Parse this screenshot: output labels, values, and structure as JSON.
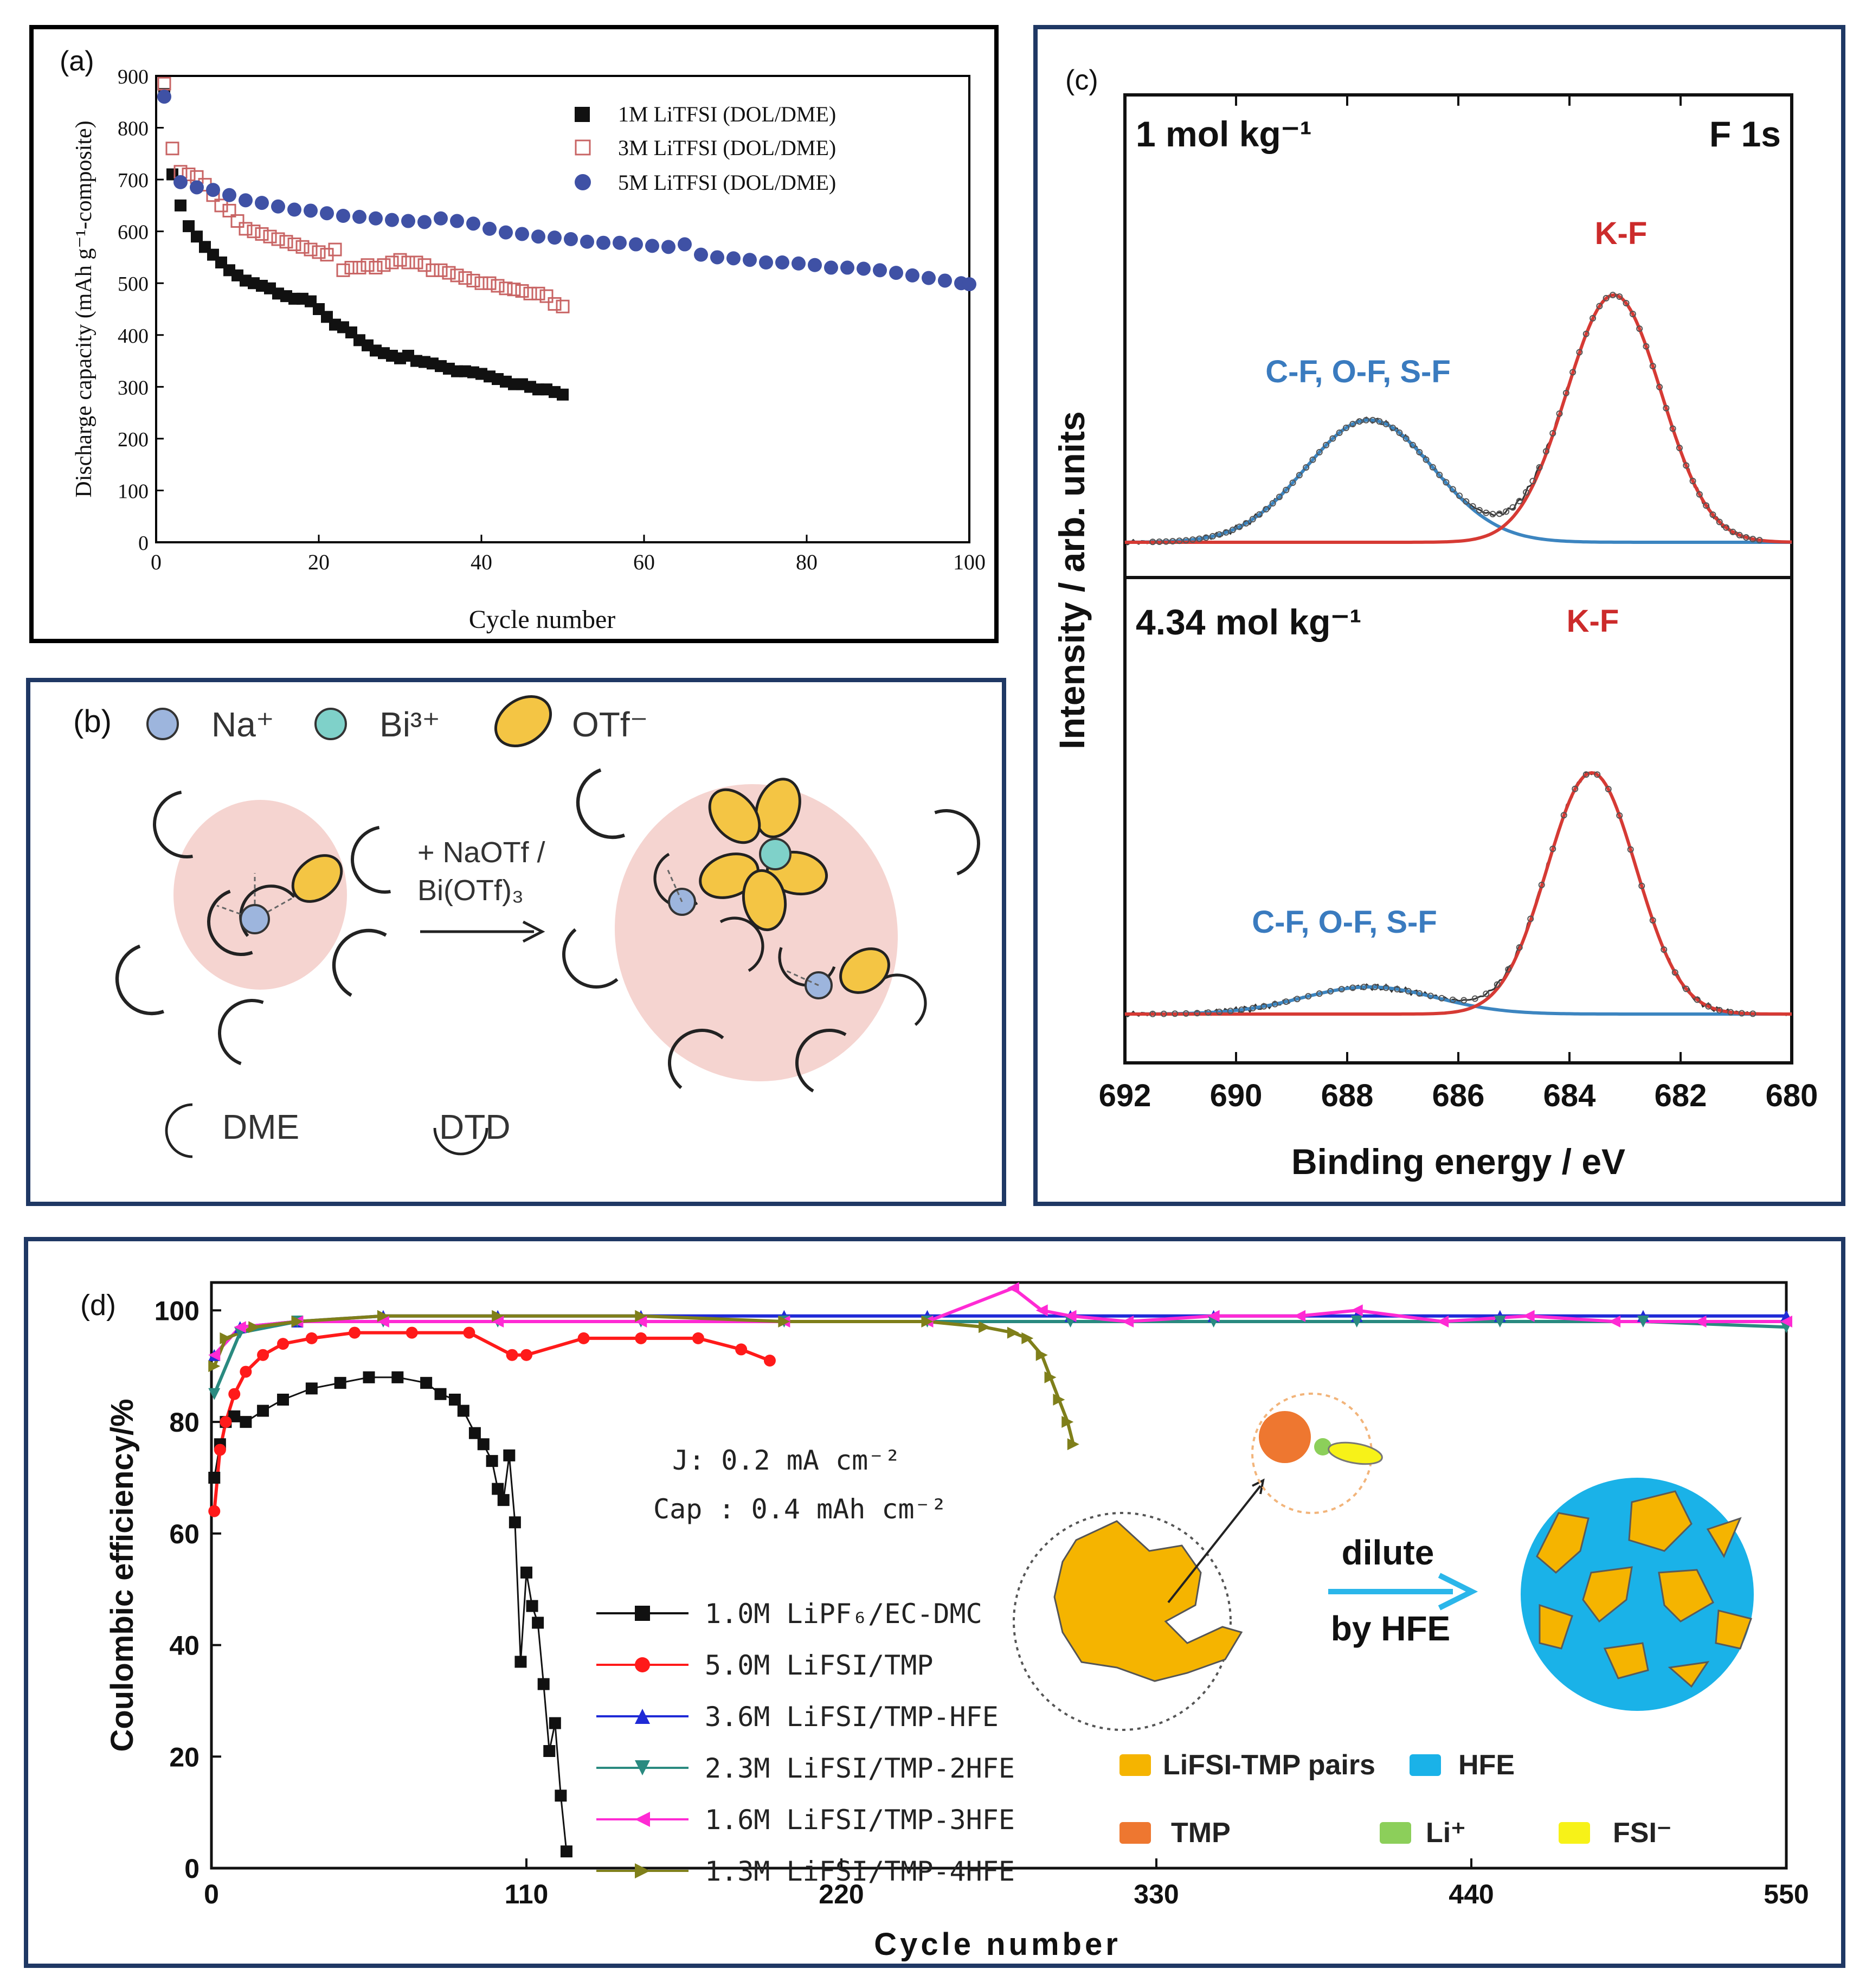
{
  "colors": {
    "frame": "#1f3864",
    "black": "#111111",
    "open_red": "#c86464",
    "blue_dot": "#3f51a5",
    "xps_blue": "#3c85c0",
    "xps_red": "#d63a34",
    "label_blue": "#3a7bbf",
    "label_red": "#cc2b2b",
    "na": "#9db5dd",
    "bi": "#7fd1c9",
    "otf": "#f4c544",
    "dme": "#a283c0",
    "dtd": "#f7c9a8",
    "halo": "#f5d4d0",
    "d_black": "#111111",
    "d_red": "#ff1a1a",
    "d_blue": "#1f2ad6",
    "d_teal": "#2a8a80",
    "d_magenta": "#ff2ad4",
    "d_olive": "#7f7f1a",
    "lifsi_tmp": "#f5b400",
    "hfe": "#1ab2e8",
    "tmp": "#ee7730",
    "li": "#8ccf5a",
    "fsi": "#f7f218",
    "arrow_blue": "#2bb6ea"
  },
  "panel_a": {
    "tag": "(a)",
    "chart_data": {
      "type": "scatter",
      "title": "",
      "xlabel": "Cycle number",
      "ylabel": "Discharge capacity (mAh g⁻¹-composite)",
      "xlim": [
        0,
        100
      ],
      "ylim": [
        0,
        900
      ],
      "xticks": [
        "0",
        "20",
        "40",
        "60",
        "80",
        "100"
      ],
      "yticks": [
        "0",
        "100",
        "200",
        "300",
        "400",
        "500",
        "600",
        "700",
        "800",
        "900"
      ],
      "legend_position": "top-right",
      "series": [
        {
          "name": "1M LiTFSI (DOL/DME)",
          "marker": "filled-square",
          "x": [
            1,
            2,
            3,
            4,
            5,
            6,
            7,
            8,
            9,
            10,
            11,
            12,
            13,
            14,
            15,
            16,
            17,
            18,
            19,
            20,
            21,
            22,
            23,
            24,
            25,
            26,
            27,
            28,
            29,
            30,
            31,
            32,
            33,
            34,
            35,
            36,
            37,
            38,
            39,
            40,
            41,
            42,
            43,
            44,
            45,
            46,
            47,
            48,
            49,
            50
          ],
          "y": [
            865,
            710,
            650,
            610,
            590,
            570,
            555,
            540,
            525,
            515,
            505,
            500,
            495,
            490,
            480,
            475,
            470,
            470,
            465,
            450,
            435,
            420,
            415,
            405,
            390,
            380,
            370,
            365,
            360,
            355,
            360,
            350,
            348,
            345,
            340,
            335,
            330,
            330,
            328,
            325,
            320,
            315,
            310,
            305,
            305,
            300,
            295,
            295,
            290,
            285
          ]
        },
        {
          "name": "3M LiTFSI (DOL/DME)",
          "marker": "open-square",
          "x": [
            1,
            2,
            3,
            4,
            5,
            6,
            7,
            8,
            9,
            10,
            11,
            12,
            13,
            14,
            15,
            16,
            17,
            18,
            19,
            20,
            21,
            22,
            23,
            24,
            25,
            26,
            27,
            28,
            29,
            30,
            31,
            32,
            33,
            34,
            35,
            36,
            37,
            38,
            39,
            40,
            41,
            42,
            43,
            44,
            45,
            46,
            47,
            48,
            49,
            50
          ],
          "y": [
            885,
            760,
            715,
            710,
            705,
            690,
            670,
            650,
            640,
            620,
            605,
            600,
            595,
            590,
            585,
            580,
            575,
            570,
            565,
            560,
            555,
            565,
            525,
            530,
            530,
            535,
            530,
            535,
            540,
            545,
            540,
            540,
            535,
            525,
            525,
            520,
            515,
            510,
            505,
            500,
            500,
            495,
            490,
            488,
            485,
            480,
            480,
            475,
            460,
            455
          ]
        },
        {
          "name": "5M LiTFSI (DOL/DME)",
          "marker": "filled-circle",
          "x": [
            1,
            3,
            5,
            7,
            9,
            11,
            13,
            15,
            17,
            19,
            21,
            23,
            25,
            27,
            29,
            31,
            33,
            35,
            37,
            39,
            41,
            43,
            45,
            47,
            49,
            51,
            53,
            55,
            57,
            59,
            61,
            63,
            65,
            67,
            69,
            71,
            73,
            75,
            77,
            79,
            81,
            83,
            85,
            87,
            89,
            91,
            93,
            95,
            97,
            99,
            100
          ],
          "y": [
            860,
            695,
            685,
            680,
            670,
            660,
            655,
            648,
            642,
            640,
            635,
            630,
            628,
            625,
            622,
            620,
            618,
            625,
            620,
            615,
            605,
            598,
            595,
            590,
            588,
            585,
            580,
            578,
            578,
            575,
            572,
            570,
            575,
            555,
            550,
            548,
            545,
            540,
            540,
            538,
            535,
            530,
            530,
            528,
            525,
            520,
            515,
            510,
            505,
            500,
            498
          ]
        }
      ]
    }
  },
  "panel_b": {
    "tag": "(b)",
    "legend_na": "Na⁺",
    "legend_bi": "Bi³⁺",
    "legend_otf": "OTf⁻",
    "arrow_line1": "+ NaOTf /",
    "arrow_line2": "Bi(OTf)₃",
    "legend_dme": "DME",
    "legend_dtd": "DTD"
  },
  "panel_c": {
    "tag": "(c)",
    "chart_data": {
      "type": "line",
      "xlabel": "Binding energy / eV",
      "ylabel": "Intensity / arb. units",
      "xlim": [
        692,
        680
      ],
      "xticks": [
        "692",
        "690",
        "688",
        "686",
        "684",
        "682",
        "680"
      ],
      "top": {
        "conc_label": "1 mol kg⁻¹",
        "region_label": "F 1s",
        "peak_cf": {
          "label": "C-F, O-F, S-F",
          "center": 687.6,
          "height": 0.47,
          "width": 1.15
        },
        "peak_kf": {
          "label": "K-F",
          "center": 683.2,
          "height": 0.95,
          "width": 0.85
        }
      },
      "bottom": {
        "conc_label": "4.34 mol kg⁻¹",
        "peak_cf": {
          "label": "C-F, O-F, S-F",
          "center": 687.6,
          "height": 0.1,
          "width": 1.2
        },
        "peak_kf": {
          "label": "K-F",
          "center": 683.6,
          "height": 0.89,
          "width": 0.8
        }
      }
    }
  },
  "panel_d": {
    "tag": "(d)",
    "chart_data": {
      "type": "scatter",
      "xlabel": "Cycle number",
      "ylabel": "Coulombic efficiency/%",
      "xlim": [
        0,
        550
      ],
      "ylim": [
        0,
        105
      ],
      "xticks": [
        "0",
        "110",
        "220",
        "330",
        "440",
        "550"
      ],
      "yticks": [
        "0",
        "20",
        "40",
        "60",
        "80",
        "100"
      ],
      "conditions_line1": "J: 0.2 mA cm⁻²",
      "conditions_line2": "Cap : 0.4 mAh cm⁻²",
      "series": [
        {
          "name": "1.0M LiPF₆/EC-DMC",
          "marker": "square",
          "x": [
            1,
            3,
            5,
            8,
            12,
            18,
            25,
            35,
            45,
            55,
            65,
            75,
            80,
            85,
            88,
            92,
            95,
            98,
            100,
            102,
            104,
            106,
            108,
            110,
            112,
            114,
            116,
            118,
            120,
            122,
            124
          ],
          "y": [
            70,
            76,
            80,
            81,
            80,
            82,
            84,
            86,
            87,
            88,
            88,
            87,
            85,
            84,
            82,
            78,
            76,
            73,
            68,
            66,
            74,
            62,
            37,
            53,
            47,
            44,
            33,
            21,
            26,
            13,
            3
          ]
        },
        {
          "name": "5.0M LiFSI/TMP",
          "marker": "circle",
          "x": [
            1,
            3,
            5,
            8,
            12,
            18,
            25,
            35,
            50,
            70,
            90,
            105,
            110,
            130,
            150,
            170,
            185,
            195
          ],
          "y": [
            64,
            75,
            80,
            85,
            89,
            92,
            94,
            95,
            96,
            96,
            96,
            92,
            92,
            95,
            95,
            95,
            93,
            91
          ]
        },
        {
          "name": "3.6M LiFSI/TMP-HFE",
          "marker": "triangle-up",
          "x": [
            1,
            10,
            30,
            60,
            100,
            150,
            200,
            250,
            300,
            350,
            400,
            450,
            500,
            550
          ],
          "y": [
            92,
            97,
            98,
            99,
            99,
            99,
            99,
            99,
            99,
            99,
            99,
            99,
            99,
            99
          ]
        },
        {
          "name": "2.3M LiFSI/TMP-2HFE",
          "marker": "triangle-down",
          "x": [
            1,
            10,
            30,
            60,
            100,
            150,
            200,
            250,
            300,
            350,
            400,
            450,
            500,
            550
          ],
          "y": [
            85,
            96,
            98,
            98,
            98,
            98,
            98,
            98,
            98,
            98,
            98,
            98,
            98,
            97
          ]
        },
        {
          "name": "1.6M LiFSI/TMP-3HFE",
          "marker": "triangle-left",
          "x": [
            1,
            10,
            30,
            60,
            100,
            150,
            200,
            250,
            280,
            290,
            300,
            320,
            350,
            380,
            400,
            430,
            460,
            490,
            520,
            550
          ],
          "y": [
            92,
            97,
            98,
            98,
            98,
            98,
            98,
            98,
            104,
            100,
            99,
            98,
            99,
            99,
            100,
            98,
            99,
            98,
            98,
            98
          ]
        },
        {
          "name": "1.3M LiFSI/TMP-4HFE",
          "marker": "triangle-right",
          "x": [
            1,
            5,
            15,
            30,
            60,
            100,
            150,
            200,
            250,
            270,
            280,
            285,
            290,
            293,
            296,
            299,
            301
          ],
          "y": [
            90,
            95,
            97,
            98,
            99,
            99,
            99,
            98,
            98,
            97,
            96,
            95,
            92,
            88,
            84,
            80,
            76
          ]
        }
      ]
    },
    "schematic": {
      "dilute_label": "dilute",
      "by_hfe_label": "by HFE",
      "key_lifsi_tmp": "LiFSI-TMP pairs",
      "key_hfe": "HFE",
      "key_tmp": "TMP",
      "key_li": "Li⁺",
      "key_fsi": "FSI⁻"
    }
  }
}
